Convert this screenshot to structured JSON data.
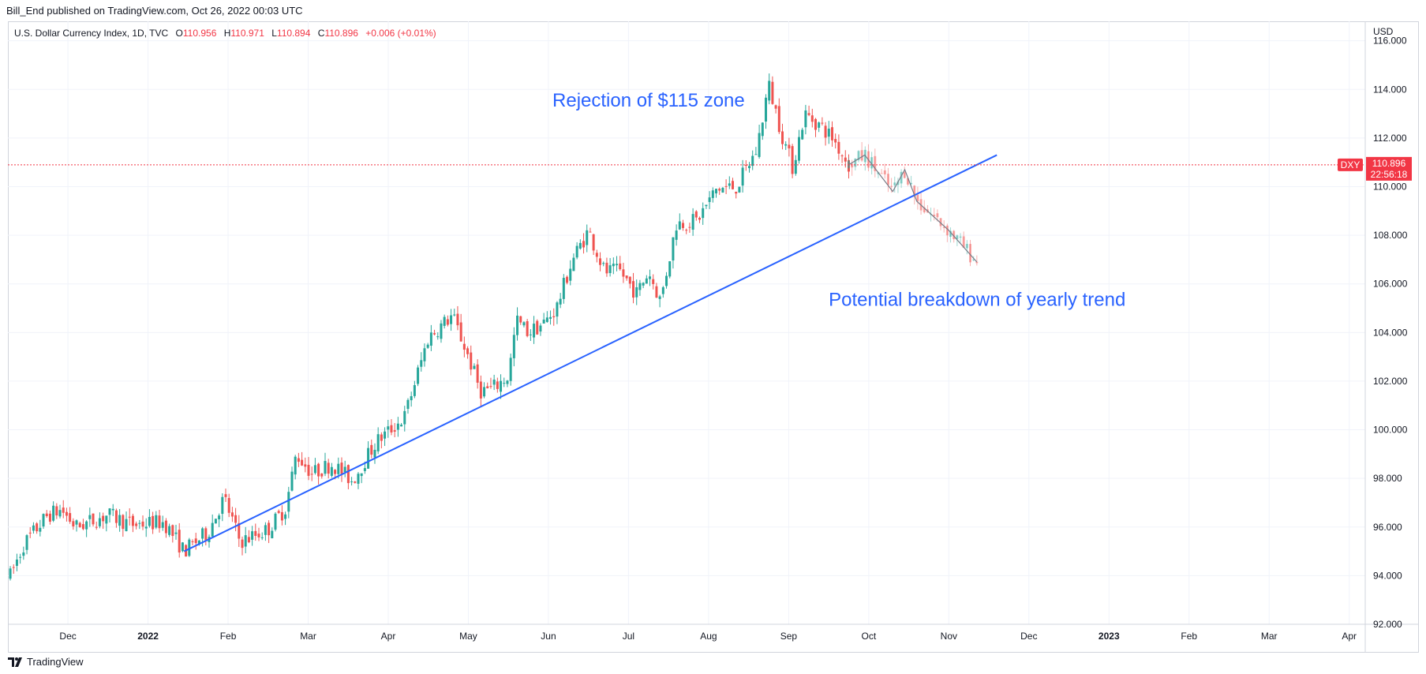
{
  "header": {
    "publish_line": "Bill_End published on TradingView.com, Oct 26, 2022 00:03 UTC"
  },
  "legend": {
    "symbol": "U.S. Dollar Currency Index, 1D, TVC",
    "open_label": "O",
    "open": "110.956",
    "high_label": "H",
    "high": "110.971",
    "low_label": "L",
    "low": "110.894",
    "close_label": "C",
    "close": "110.896",
    "change": "+0.006 (+0.01%)"
  },
  "price_scale": {
    "currency": "USD",
    "ticks": [
      "116.000",
      "114.000",
      "112.000",
      "110.000",
      "108.000",
      "106.000",
      "104.000",
      "102.000",
      "100.000",
      "98.000",
      "96.000",
      "94.000",
      "92.000"
    ]
  },
  "last_price": {
    "symbol": "DXY",
    "price": "110.896",
    "countdown": "22:56:18"
  },
  "footer": {
    "brand": "TradingView"
  },
  "colors": {
    "up": "#26a69a",
    "down": "#ef5350",
    "trendline": "#2962ff",
    "projection": "#787b86",
    "last_price_line": "#f23645",
    "grid": "#f0f3fa"
  },
  "chart_data": {
    "type": "candlestick",
    "title": "U.S. Dollar Currency Index, 1D, TVC",
    "ylabel": "USD",
    "ylim": [
      92,
      116.8
    ],
    "x_tick_labels": [
      "Dec",
      "2022",
      "Feb",
      "Mar",
      "Apr",
      "May",
      "Jun",
      "Jul",
      "Aug",
      "Sep",
      "Oct",
      "Nov",
      "Dec",
      "2023",
      "Feb",
      "Mar",
      "Apr"
    ],
    "x_tick_months": [
      1,
      2,
      3,
      4,
      5,
      6,
      7,
      8,
      9,
      10,
      11,
      12,
      13,
      14,
      15,
      16,
      17
    ],
    "x_tick_bold": [
      "2022",
      "2023"
    ],
    "x_range_months": [
      0.25,
      17.2
    ],
    "price_path_points": [
      {
        "t": 0.28,
        "p": 94.0
      },
      {
        "t": 0.45,
        "p": 95.3
      },
      {
        "t": 0.75,
        "p": 96.5
      },
      {
        "t": 0.92,
        "p": 96.7
      },
      {
        "t": 1.1,
        "p": 96.0
      },
      {
        "t": 1.5,
        "p": 96.5
      },
      {
        "t": 1.8,
        "p": 96.1
      },
      {
        "t": 2.2,
        "p": 96.2
      },
      {
        "t": 2.45,
        "p": 95.0
      },
      {
        "t": 2.75,
        "p": 95.8
      },
      {
        "t": 2.95,
        "p": 97.2
      },
      {
        "t": 3.15,
        "p": 95.4
      },
      {
        "t": 3.5,
        "p": 95.9
      },
      {
        "t": 3.72,
        "p": 96.8
      },
      {
        "t": 3.85,
        "p": 99.0
      },
      {
        "t": 4.05,
        "p": 98.2
      },
      {
        "t": 4.3,
        "p": 98.6
      },
      {
        "t": 4.55,
        "p": 97.9
      },
      {
        "t": 4.85,
        "p": 99.5
      },
      {
        "t": 5.2,
        "p": 100.5
      },
      {
        "t": 5.5,
        "p": 103.8
      },
      {
        "t": 5.8,
        "p": 104.7
      },
      {
        "t": 6.0,
        "p": 103.0
      },
      {
        "t": 6.15,
        "p": 101.6
      },
      {
        "t": 6.3,
        "p": 101.7
      },
      {
        "t": 6.5,
        "p": 102.2
      },
      {
        "t": 6.6,
        "p": 104.5
      },
      {
        "t": 6.75,
        "p": 104.0
      },
      {
        "t": 6.95,
        "p": 104.4
      },
      {
        "t": 7.1,
        "p": 105.0
      },
      {
        "t": 7.3,
        "p": 107.0
      },
      {
        "t": 7.5,
        "p": 108.2
      },
      {
        "t": 7.7,
        "p": 106.5
      },
      {
        "t": 7.9,
        "p": 106.5
      },
      {
        "t": 8.1,
        "p": 105.6
      },
      {
        "t": 8.25,
        "p": 106.5
      },
      {
        "t": 8.4,
        "p": 105.3
      },
      {
        "t": 8.6,
        "p": 108.5
      },
      {
        "t": 8.85,
        "p": 108.6
      },
      {
        "t": 9.1,
        "p": 109.9
      },
      {
        "t": 9.35,
        "p": 110.0
      },
      {
        "t": 9.6,
        "p": 111.5
      },
      {
        "t": 9.75,
        "p": 114.2
      },
      {
        "t": 9.92,
        "p": 112.1
      },
      {
        "t": 10.05,
        "p": 110.8
      },
      {
        "t": 10.2,
        "p": 113.0
      },
      {
        "t": 10.4,
        "p": 112.5
      },
      {
        "t": 10.55,
        "p": 112.0
      },
      {
        "t": 10.75,
        "p": 110.9
      }
    ],
    "projection_path": [
      {
        "t": 10.75,
        "p": 110.9
      },
      {
        "t": 10.95,
        "p": 111.3
      },
      {
        "t": 11.3,
        "p": 109.8
      },
      {
        "t": 11.45,
        "p": 110.7
      },
      {
        "t": 11.6,
        "p": 109.4
      },
      {
        "t": 12.0,
        "p": 108.2
      },
      {
        "t": 12.35,
        "p": 106.9
      }
    ],
    "trendline": {
      "start": {
        "t": 2.45,
        "p": 95.0
      },
      "end": {
        "t": 12.6,
        "p": 111.3
      }
    },
    "last_price_value": 110.896,
    "annotations": [
      {
        "text": "Rejection of $115 zone",
        "t": 7.05,
        "p": 113.3
      },
      {
        "text": "Potential breakdown of yearly trend",
        "t": 10.5,
        "p": 105.1
      }
    ]
  }
}
